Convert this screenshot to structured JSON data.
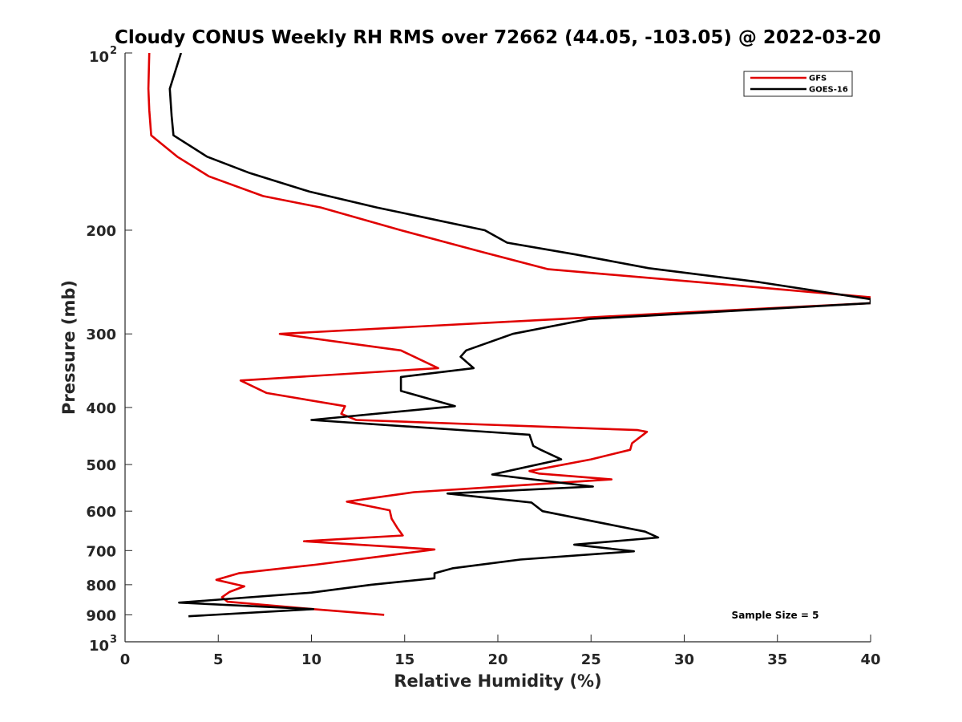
{
  "chart_data": {
    "type": "line",
    "title": "Cloudy CONUS Weekly RH RMS over 72662 (44.05, -103.05) @ 2022-03-20",
    "xlabel": "Relative Humidity (%)",
    "ylabel": "Pressure (mb)",
    "xlim": [
      0,
      40
    ],
    "ylim": [
      100,
      1000
    ],
    "y_scale": "log",
    "y_reversed": true,
    "grid": false,
    "legend_position": "top-right",
    "annotation": "Sample Size = 5",
    "x_ticks": [
      0,
      5,
      10,
      15,
      20,
      25,
      30,
      35,
      40
    ],
    "y_ticks": [
      {
        "value": 100,
        "label": "10",
        "sup": "2"
      },
      {
        "value": 200,
        "label": "200"
      },
      {
        "value": 300,
        "label": "300"
      },
      {
        "value": 400,
        "label": "400"
      },
      {
        "value": 500,
        "label": "500"
      },
      {
        "value": 600,
        "label": "600"
      },
      {
        "value": 700,
        "label": "700"
      },
      {
        "value": 800,
        "label": "800"
      },
      {
        "value": 900,
        "label": "900"
      },
      {
        "value": 1000,
        "label": "10",
        "sup": "3"
      }
    ],
    "series": [
      {
        "name": "GFS",
        "color": "#e00000",
        "points": [
          [
            1.3,
            100
          ],
          [
            1.25,
            115
          ],
          [
            1.3,
            125
          ],
          [
            1.4,
            138
          ],
          [
            2.8,
            150
          ],
          [
            4.5,
            162
          ],
          [
            7.4,
            175
          ],
          [
            10.5,
            183
          ],
          [
            14.8,
            200
          ],
          [
            19.2,
            218
          ],
          [
            22.7,
            233
          ],
          [
            32.0,
            247
          ],
          [
            40.0,
            260
          ],
          [
            40.0,
            266
          ],
          [
            28.0,
            278
          ],
          [
            21.5,
            285
          ],
          [
            8.3,
            300
          ],
          [
            14.8,
            320
          ],
          [
            16.8,
            343
          ],
          [
            6.2,
            360
          ],
          [
            7.6,
            378
          ],
          [
            11.8,
            398
          ],
          [
            11.6,
            410
          ],
          [
            12.4,
            420
          ],
          [
            27.5,
            437
          ],
          [
            28.0,
            440
          ],
          [
            27.2,
            460
          ],
          [
            27.1,
            472
          ],
          [
            25.0,
            490
          ],
          [
            21.7,
            513
          ],
          [
            22.2,
            518
          ],
          [
            26.1,
            530
          ],
          [
            15.5,
            557
          ],
          [
            11.9,
            578
          ],
          [
            14.2,
            598
          ],
          [
            14.3,
            618
          ],
          [
            14.6,
            640
          ],
          [
            14.9,
            660
          ],
          [
            9.6,
            675
          ],
          [
            16.6,
            697
          ],
          [
            13.9,
            715
          ],
          [
            10.2,
            740
          ],
          [
            6.1,
            765
          ],
          [
            4.9,
            785
          ],
          [
            6.4,
            805
          ],
          [
            5.6,
            823
          ],
          [
            5.2,
            840
          ],
          [
            5.5,
            855
          ],
          [
            10.1,
            880
          ],
          [
            13.9,
            900
          ]
        ]
      },
      {
        "name": "GOES-16",
        "color": "#000000",
        "points": [
          [
            3.0,
            100
          ],
          [
            2.4,
            115
          ],
          [
            2.5,
            128
          ],
          [
            2.6,
            138
          ],
          [
            4.4,
            150
          ],
          [
            6.7,
            160
          ],
          [
            9.9,
            172
          ],
          [
            13.5,
            183
          ],
          [
            19.3,
            200
          ],
          [
            20.5,
            210
          ],
          [
            24.2,
            220
          ],
          [
            28.1,
            232
          ],
          [
            34.0,
            245
          ],
          [
            40.0,
            262
          ],
          [
            40.0,
            266
          ],
          [
            24.9,
            283
          ],
          [
            20.8,
            300
          ],
          [
            18.3,
            320
          ],
          [
            18.0,
            328
          ],
          [
            18.7,
            343
          ],
          [
            14.8,
            355
          ],
          [
            14.8,
            375
          ],
          [
            17.7,
            398
          ],
          [
            10.0,
            420
          ],
          [
            21.7,
            445
          ],
          [
            21.9,
            465
          ],
          [
            22.3,
            472
          ],
          [
            23.4,
            490
          ],
          [
            19.7,
            520
          ],
          [
            25.1,
            545
          ],
          [
            17.3,
            560
          ],
          [
            21.8,
            580
          ],
          [
            22.4,
            600
          ],
          [
            27.9,
            650
          ],
          [
            28.6,
            665
          ],
          [
            24.1,
            684
          ],
          [
            27.3,
            702
          ],
          [
            21.2,
            725
          ],
          [
            17.6,
            750
          ],
          [
            16.6,
            765
          ],
          [
            16.6,
            780
          ],
          [
            13.2,
            800
          ],
          [
            10.0,
            825
          ],
          [
            2.9,
            858
          ],
          [
            10.1,
            880
          ],
          [
            3.4,
            905
          ]
        ]
      }
    ]
  }
}
